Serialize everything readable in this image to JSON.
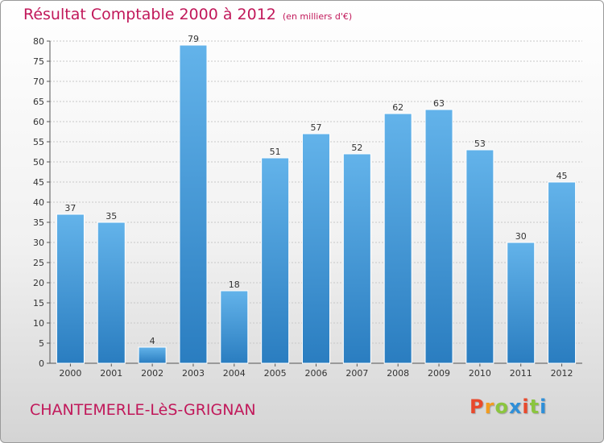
{
  "header": {
    "title": "Résultat Comptable 2000 à 2012",
    "subtitle": "(en milliers d'€)"
  },
  "footer": {
    "commune": "CHANTEMERLE-LèS-GRIGNAN",
    "logo_letters": [
      "P",
      "r",
      "o",
      "x",
      "i",
      "t",
      "i"
    ]
  },
  "colors": {
    "title": "#c1185a",
    "bar_light": "#63b3ea",
    "bar_dark": "#2a7dc0",
    "logo": [
      "#e8492c",
      "#f29c1f",
      "#8bc53f",
      "#2f8fd8",
      "#e8492c",
      "#8bc53f",
      "#2f8fd8"
    ]
  },
  "chart_data": {
    "type": "bar",
    "title": "Résultat Comptable 2000 à 2012",
    "subtitle": "(en milliers d'€)",
    "categories": [
      "2000",
      "2001",
      "2002",
      "2003",
      "2004",
      "2005",
      "2006",
      "2007",
      "2008",
      "2009",
      "2010",
      "2011",
      "2012"
    ],
    "values": [
      37,
      35,
      4,
      79,
      18,
      51,
      57,
      52,
      62,
      63,
      53,
      30,
      45
    ],
    "ylim": [
      0,
      80
    ],
    "yticks": [
      0,
      5,
      10,
      15,
      20,
      25,
      30,
      35,
      40,
      45,
      50,
      55,
      60,
      65,
      70,
      75,
      80
    ],
    "grid": true,
    "data_labels": true
  }
}
